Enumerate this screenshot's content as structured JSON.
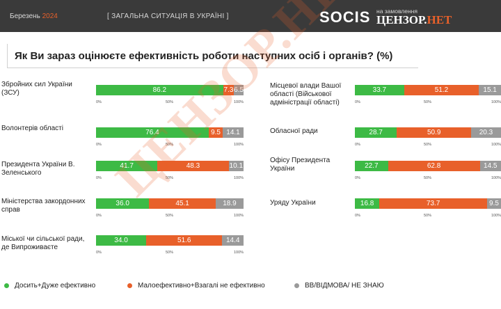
{
  "header": {
    "month": "Березень",
    "year": "2024",
    "section": "[ ЗАГАЛЬНА СИТУАЦІЯ В УКРАЇНІ ]",
    "logo_main": "SOCIS",
    "logo_sub": "на замовлення",
    "logo_partner": "ЦЕНЗОР.",
    "logo_partner_suffix": "НЕТ"
  },
  "watermark": "ЦЕНЗОР.НЕТ",
  "colors": {
    "effective": "#3dba45",
    "ineffective": "#e8602a",
    "unknown": "#9a9a9a",
    "header_bg": "#3a3a3a"
  },
  "chart_data": {
    "type": "bar",
    "orientation": "horizontal-stacked",
    "title": "Як Ви зараз оцінюєте ефективність роботи наступних осіб і органів? (%)",
    "xlim": [
      0,
      100
    ],
    "ticks": [
      "0%",
      "50%",
      "100%"
    ],
    "series": [
      {
        "name": "Досить+Дуже ефективно"
      },
      {
        "name": "Малоефективно+Взагалі не ефективно"
      },
      {
        "name": "ВВ/ВІДМОВА/ НЕ ЗНАЮ"
      }
    ],
    "categories": [
      {
        "label": "Збройних сил України (ЗСУ)",
        "values": [
          86.2,
          7.3,
          6.5
        ],
        "labels": [
          "86.2",
          "7.3",
          "6.5"
        ]
      },
      {
        "label": "Волонтерів області",
        "values": [
          76.4,
          9.5,
          14.1
        ],
        "labels": [
          "76.4",
          "9.5",
          "14.1"
        ]
      },
      {
        "label": "Президента України В. Зеленського",
        "values": [
          41.7,
          48.3,
          10.1
        ],
        "labels": [
          "41.7",
          "48.3",
          "10.1"
        ]
      },
      {
        "label": "Міністерства закордонних справ",
        "values": [
          36.0,
          45.1,
          18.9
        ],
        "labels": [
          "36.0",
          "45.1",
          "18.9"
        ]
      },
      {
        "label": "Міської чи сільської ради, де Випроживаєте",
        "values": [
          34.0,
          51.6,
          14.4
        ],
        "labels": [
          "34.0",
          "51.6",
          "14.4"
        ]
      },
      {
        "label": "Місцевої влади Вашої області (Військової адміністрації області)",
        "values": [
          33.7,
          51.2,
          15.1
        ],
        "labels": [
          "33.7",
          "51.2",
          "15.1"
        ]
      },
      {
        "label": "Обласної ради",
        "values": [
          28.7,
          50.9,
          20.3
        ],
        "labels": [
          "28.7",
          "50.9",
          "20.3"
        ]
      },
      {
        "label": "Офісу Президента України",
        "values": [
          22.7,
          62.8,
          14.5
        ],
        "labels": [
          "22.7",
          "62.8",
          "14.5"
        ]
      },
      {
        "label": "Уряду України",
        "values": [
          16.8,
          73.7,
          9.5
        ],
        "labels": [
          "16.8",
          "73.7",
          "9.5"
        ]
      }
    ]
  }
}
